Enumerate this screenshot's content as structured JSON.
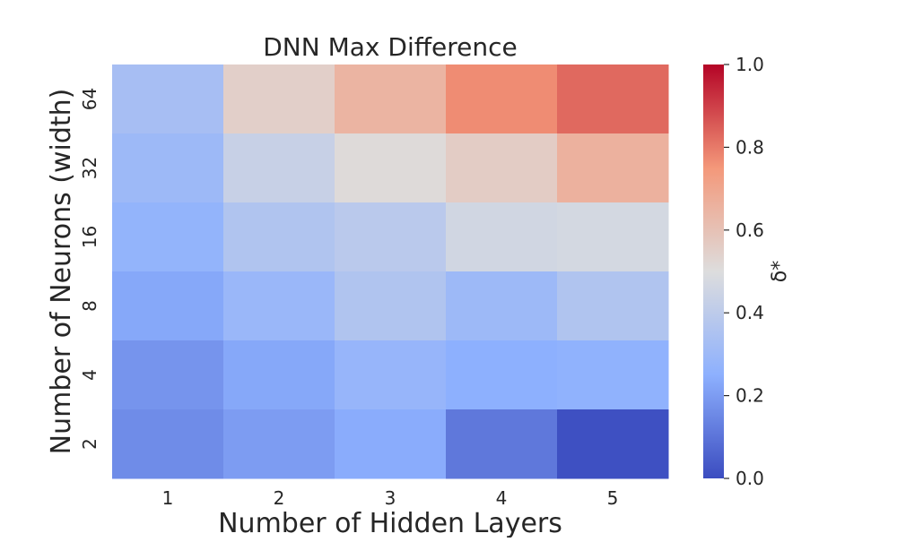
{
  "chart_data": {
    "type": "heatmap",
    "title": "DNN Max Difference",
    "xlabel": "Number of Hidden Layers",
    "ylabel": "Number of Neurons (width)",
    "x_categories": [
      "1",
      "2",
      "3",
      "4",
      "5"
    ],
    "y_categories": [
      "64",
      "32",
      "16",
      "8",
      "4",
      "2"
    ],
    "values": [
      [
        0.33,
        0.55,
        0.65,
        0.77,
        0.83
      ],
      [
        0.3,
        0.43,
        0.51,
        0.56,
        0.66
      ],
      [
        0.27,
        0.36,
        0.39,
        0.46,
        0.47
      ],
      [
        0.23,
        0.29,
        0.36,
        0.3,
        0.36
      ],
      [
        0.18,
        0.23,
        0.28,
        0.25,
        0.26
      ],
      [
        0.16,
        0.2,
        0.24,
        0.11,
        0.01
      ]
    ],
    "colormap": "coolwarm",
    "vmin": 0.0,
    "vmax": 1.0,
    "colorbar": {
      "label": "δ*",
      "ticks": [
        "0.0",
        "0.2",
        "0.4",
        "0.6",
        "0.8",
        "1.0"
      ],
      "placement": "right"
    },
    "grid": false
  }
}
